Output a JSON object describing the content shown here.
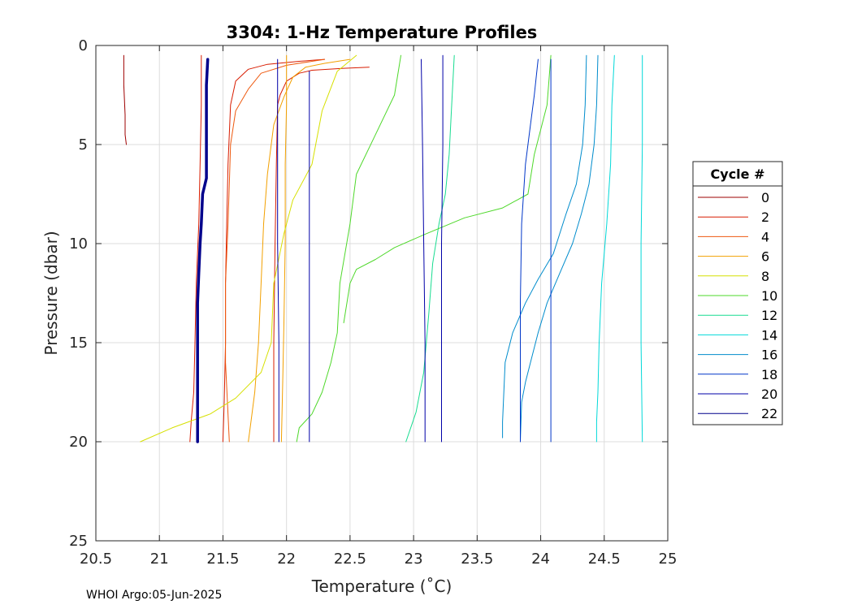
{
  "chart_data": {
    "type": "line",
    "title": "3304: 1-Hz Temperature Profiles",
    "xlabel": "Temperature (˚C)",
    "ylabel": "Pressure (dbar)",
    "xlim": [
      20.5,
      25
    ],
    "ylim": [
      0,
      25
    ],
    "y_reversed": true,
    "grid": true,
    "x_ticks": [
      "20.5",
      "21",
      "21.5",
      "22",
      "22.5",
      "23",
      "23.5",
      "24",
      "24.5",
      "25"
    ],
    "y_ticks": [
      "0",
      "5",
      "10",
      "15",
      "20",
      "25"
    ],
    "legend": {
      "title": "Cycle #",
      "placement": "outside-right",
      "entries": [
        {
          "label": "0",
          "color": "#9e0000"
        },
        {
          "label": "2",
          "color": "#d81c00"
        },
        {
          "label": "4",
          "color": "#ee5a10"
        },
        {
          "label": "6",
          "color": "#f2a000"
        },
        {
          "label": "8",
          "color": "#d6e000"
        },
        {
          "label": "10",
          "color": "#4ed82a"
        },
        {
          "label": "12",
          "color": "#18dc90"
        },
        {
          "label": "14",
          "color": "#00d8d8"
        },
        {
          "label": "16",
          "color": "#008ccc"
        },
        {
          "label": "18",
          "color": "#0036c8"
        },
        {
          "label": "20",
          "color": "#0000a8"
        },
        {
          "label": "22",
          "color": "#00008c"
        }
      ]
    },
    "series": [
      {
        "name": "0",
        "color": "#9e0000",
        "width": 1,
        "points": [
          [
            20.72,
            0.5
          ],
          [
            20.72,
            2.0
          ],
          [
            20.73,
            3.5
          ],
          [
            20.73,
            4.5
          ],
          [
            20.74,
            5.0
          ]
        ]
      },
      {
        "name": "0",
        "color": "#d81c00",
        "width": 1,
        "points": [
          [
            21.33,
            0.5
          ],
          [
            21.33,
            3
          ],
          [
            21.32,
            6
          ],
          [
            21.31,
            9
          ],
          [
            21.29,
            12
          ],
          [
            21.28,
            15
          ],
          [
            21.27,
            17.5
          ],
          [
            21.25,
            19
          ],
          [
            21.24,
            20
          ]
        ]
      },
      {
        "name": "2",
        "color": "#d81c00",
        "width": 1,
        "points": [
          [
            22.3,
            0.7
          ],
          [
            22.1,
            0.8
          ],
          [
            21.85,
            0.95
          ],
          [
            21.7,
            1.2
          ],
          [
            21.6,
            1.8
          ],
          [
            21.56,
            3
          ],
          [
            21.54,
            6
          ],
          [
            21.53,
            9
          ],
          [
            21.52,
            12
          ],
          [
            21.52,
            15
          ],
          [
            21.51,
            18
          ],
          [
            21.5,
            20
          ]
        ]
      },
      {
        "name": "2",
        "color": "#d81c00",
        "width": 1,
        "points": [
          [
            22.65,
            1.1
          ],
          [
            22.45,
            1.15
          ],
          [
            22.2,
            1.25
          ],
          [
            22.1,
            1.4
          ],
          [
            22.0,
            1.8
          ],
          [
            21.95,
            2.5
          ],
          [
            21.93,
            3
          ],
          [
            21.92,
            6
          ],
          [
            21.91,
            10
          ],
          [
            21.9,
            15
          ],
          [
            21.9,
            20
          ]
        ]
      },
      {
        "name": "4",
        "color": "#ee5a10",
        "width": 1,
        "points": [
          [
            22.3,
            0.7
          ],
          [
            22.2,
            0.8
          ],
          [
            22.0,
            1.0
          ],
          [
            21.8,
            1.4
          ],
          [
            21.7,
            2.2
          ],
          [
            21.6,
            3.3
          ],
          [
            21.56,
            5
          ],
          [
            21.55,
            7
          ],
          [
            21.54,
            9
          ],
          [
            21.52,
            12
          ],
          [
            21.52,
            16
          ],
          [
            21.55,
            20
          ]
        ]
      },
      {
        "name": "6",
        "color": "#f2a000",
        "width": 1,
        "points": [
          [
            22.5,
            0.7
          ],
          [
            22.3,
            0.9
          ],
          [
            22.15,
            1.1
          ],
          [
            22.05,
            1.6
          ],
          [
            21.98,
            2.6
          ],
          [
            21.9,
            4
          ],
          [
            21.85,
            6.5
          ],
          [
            21.82,
            9
          ],
          [
            21.8,
            12
          ],
          [
            21.78,
            15
          ],
          [
            21.75,
            17.5
          ],
          [
            21.72,
            19
          ],
          [
            21.7,
            20
          ]
        ]
      },
      {
        "name": "6",
        "color": "#f2a000",
        "width": 1,
        "points": [
          [
            22.0,
            0.5
          ],
          [
            22.0,
            3
          ],
          [
            21.99,
            6
          ],
          [
            21.99,
            10
          ],
          [
            21.98,
            14
          ],
          [
            21.97,
            17
          ],
          [
            21.96,
            20
          ]
        ]
      },
      {
        "name": "8",
        "color": "#d6e000",
        "width": 1,
        "points": [
          [
            22.55,
            0.5
          ],
          [
            22.4,
            1.3
          ],
          [
            22.28,
            3.3
          ],
          [
            22.2,
            6
          ],
          [
            22.05,
            7.8
          ],
          [
            21.98,
            9.5
          ],
          [
            21.9,
            12
          ],
          [
            21.88,
            15
          ],
          [
            21.8,
            16.5
          ],
          [
            21.6,
            17.8
          ],
          [
            21.4,
            18.6
          ],
          [
            21.1,
            19.3
          ],
          [
            20.85,
            20
          ]
        ]
      },
      {
        "name": "10",
        "color": "#4ed82a",
        "width": 1,
        "points": [
          [
            22.9,
            0.5
          ],
          [
            22.85,
            2.5
          ],
          [
            22.7,
            4.5
          ],
          [
            22.55,
            6.5
          ],
          [
            22.5,
            9
          ],
          [
            22.42,
            12
          ],
          [
            22.4,
            14.5
          ],
          [
            22.35,
            16
          ],
          [
            22.28,
            17.5
          ],
          [
            22.2,
            18.6
          ],
          [
            22.1,
            19.3
          ],
          [
            22.08,
            20
          ]
        ]
      },
      {
        "name": "12",
        "color": "#18dc90",
        "width": 1,
        "points": [
          [
            23.32,
            0.5
          ],
          [
            23.3,
            3
          ],
          [
            23.28,
            5.5
          ],
          [
            23.25,
            7.5
          ],
          [
            23.2,
            9
          ],
          [
            23.15,
            11
          ],
          [
            23.12,
            13.5
          ],
          [
            23.08,
            16.5
          ],
          [
            23.02,
            18.5
          ],
          [
            22.94,
            20
          ]
        ]
      },
      {
        "name": "10",
        "color": "#4ed82a",
        "width": 1,
        "points": [
          [
            24.08,
            0.5
          ],
          [
            24.05,
            3
          ],
          [
            23.95,
            5.5
          ],
          [
            23.9,
            7.5
          ],
          [
            23.7,
            8.2
          ],
          [
            23.4,
            8.7
          ],
          [
            23.1,
            9.5
          ],
          [
            22.85,
            10.2
          ],
          [
            22.7,
            10.8
          ],
          [
            22.55,
            11.3
          ],
          [
            22.5,
            12
          ],
          [
            22.45,
            14
          ]
        ]
      },
      {
        "name": "14",
        "color": "#00d8d8",
        "width": 1,
        "points": [
          [
            24.58,
            0.5
          ],
          [
            24.56,
            3
          ],
          [
            24.55,
            6
          ],
          [
            24.52,
            9
          ],
          [
            24.48,
            12
          ],
          [
            24.46,
            15
          ],
          [
            24.45,
            17.5
          ],
          [
            24.44,
            19
          ],
          [
            24.44,
            20
          ]
        ]
      },
      {
        "name": "14",
        "color": "#00d8d8",
        "width": 1,
        "points": [
          [
            24.8,
            0.5
          ],
          [
            24.8,
            5
          ],
          [
            24.79,
            10
          ],
          [
            24.79,
            15
          ],
          [
            24.8,
            20
          ]
        ]
      },
      {
        "name": "16",
        "color": "#008ccc",
        "width": 1,
        "points": [
          [
            24.36,
            0.5
          ],
          [
            24.35,
            3
          ],
          [
            24.33,
            5
          ],
          [
            24.28,
            7
          ],
          [
            24.2,
            8.5
          ],
          [
            24.1,
            10.5
          ],
          [
            23.98,
            11.8
          ],
          [
            23.88,
            13
          ],
          [
            23.78,
            14.5
          ],
          [
            23.72,
            16
          ],
          [
            23.7,
            19
          ],
          [
            23.7,
            19.8
          ]
        ]
      },
      {
        "name": "16",
        "color": "#008ccc",
        "width": 1,
        "points": [
          [
            24.45,
            0.5
          ],
          [
            24.44,
            3
          ],
          [
            24.42,
            5
          ],
          [
            24.38,
            7
          ],
          [
            24.32,
            8.5
          ],
          [
            24.25,
            10
          ],
          [
            24.15,
            11.5
          ],
          [
            24.05,
            13
          ],
          [
            23.98,
            14.5
          ],
          [
            23.92,
            16
          ],
          [
            23.88,
            17
          ],
          [
            23.85,
            18
          ],
          [
            23.84,
            20
          ]
        ]
      },
      {
        "name": "18",
        "color": "#0036c8",
        "width": 1,
        "points": [
          [
            23.98,
            0.7
          ],
          [
            23.95,
            2.5
          ],
          [
            23.92,
            4
          ],
          [
            23.88,
            6
          ],
          [
            23.85,
            9
          ],
          [
            23.84,
            13
          ],
          [
            23.84,
            17
          ],
          [
            23.84,
            20
          ]
        ]
      },
      {
        "name": "18",
        "color": "#0036c8",
        "width": 1,
        "points": [
          [
            24.08,
            0.7
          ],
          [
            24.08,
            5
          ],
          [
            24.08,
            10
          ],
          [
            24.08,
            15
          ],
          [
            24.08,
            20
          ]
        ]
      },
      {
        "name": "20",
        "color": "#0000a8",
        "width": 1,
        "points": [
          [
            23.23,
            0.5
          ],
          [
            23.23,
            5
          ],
          [
            23.22,
            10
          ],
          [
            23.22,
            15
          ],
          [
            23.22,
            20
          ]
        ]
      },
      {
        "name": "20",
        "color": "#0000a8",
        "width": 1,
        "points": [
          [
            23.06,
            0.7
          ],
          [
            23.07,
            5
          ],
          [
            23.08,
            10
          ],
          [
            23.09,
            15
          ],
          [
            23.09,
            20
          ]
        ]
      },
      {
        "name": "20",
        "color": "#0000a8",
        "width": 1,
        "points": [
          [
            21.93,
            0.7
          ],
          [
            21.93,
            5
          ],
          [
            21.93,
            10
          ],
          [
            21.94,
            15
          ],
          [
            21.94,
            20
          ]
        ]
      },
      {
        "name": "20",
        "color": "#0000a8",
        "width": 1,
        "points": [
          [
            22.18,
            1.3
          ],
          [
            22.18,
            5
          ],
          [
            22.18,
            10
          ],
          [
            22.18,
            15
          ],
          [
            22.18,
            20
          ]
        ]
      },
      {
        "name": "22",
        "color": "#00008c",
        "width": 3.5,
        "points": [
          [
            21.38,
            0.7
          ],
          [
            21.37,
            2
          ],
          [
            21.37,
            4
          ],
          [
            21.37,
            6.7
          ],
          [
            21.34,
            7.5
          ],
          [
            21.33,
            9
          ],
          [
            21.32,
            10
          ],
          [
            21.31,
            11.5
          ],
          [
            21.3,
            13
          ],
          [
            21.3,
            15
          ],
          [
            21.3,
            17
          ],
          [
            21.3,
            18.5
          ],
          [
            21.3,
            20
          ]
        ]
      }
    ]
  },
  "footer": {
    "text": "WHOI Argo:05-Jun-2025"
  }
}
